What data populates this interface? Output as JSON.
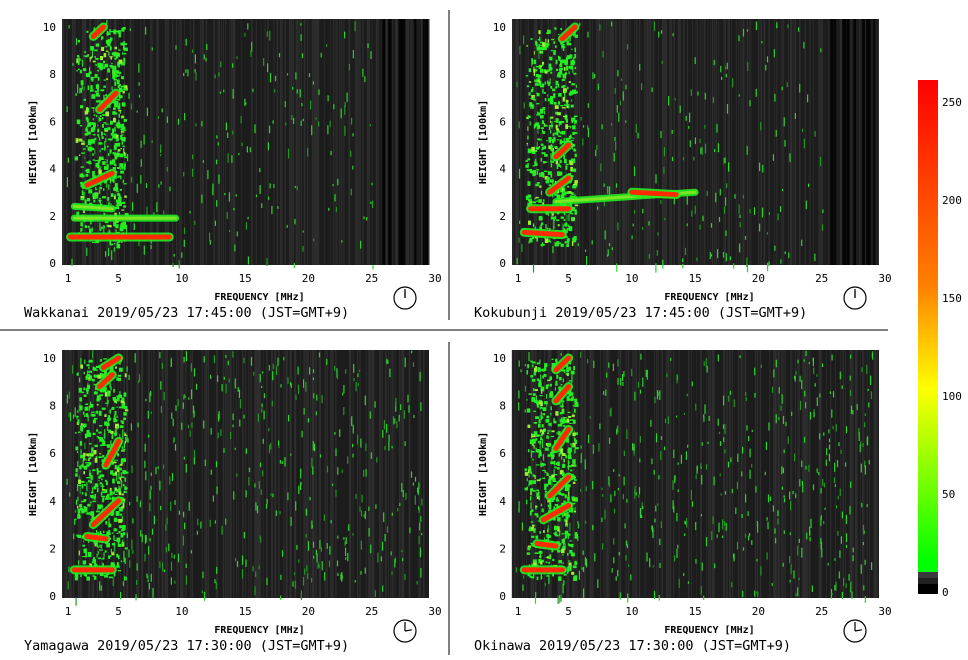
{
  "chart_data": [
    {
      "type": "heatmap",
      "station": "Wakkanai",
      "caption": "Wakkanai 2019/05/23 17:45:00 (JST=GMT+9)",
      "xlabel": "FREQUENCY [MHz]",
      "ylabel": "HEIGHT [100km]",
      "xlim": [
        0,
        30
      ],
      "ylim": [
        0,
        10
      ],
      "xticks": [
        1,
        5,
        10,
        15,
        20,
        25,
        30
      ],
      "yticks": [
        0,
        2,
        4,
        6,
        8,
        10
      ],
      "traces": [
        {
          "freq": [
            1.2,
            9.0
          ],
          "height": [
            1.1,
            1.1
          ],
          "level": 250
        },
        {
          "freq": [
            1.5,
            9.5
          ],
          "height": [
            1.9,
            1.9
          ],
          "level": 130
        },
        {
          "freq": [
            1.5,
            4.5
          ],
          "height": [
            2.4,
            2.3
          ],
          "level": 140
        },
        {
          "freq": [
            2.5,
            4.5
          ],
          "height": [
            3.3,
            3.8
          ],
          "level": 250
        },
        {
          "freq": [
            3.5,
            4.8
          ],
          "height": [
            6.5,
            7.2
          ],
          "level": 250
        },
        {
          "freq": [
            3.0,
            3.8
          ],
          "height": [
            9.6,
            10.0
          ],
          "level": 250
        }
      ]
    },
    {
      "type": "heatmap",
      "station": "Kokubunji",
      "caption": "Kokubunji 2019/05/23 17:45:00 (JST=GMT+9)",
      "xlabel": "FREQUENCY [MHz]",
      "ylabel": "HEIGHT [100km]",
      "xlim": [
        0,
        30
      ],
      "ylim": [
        0,
        10
      ],
      "xticks": [
        1,
        5,
        10,
        15,
        20,
        25,
        30
      ],
      "yticks": [
        0,
        2,
        4,
        6,
        8,
        10
      ],
      "traces": [
        {
          "freq": [
            1.5,
            4.5
          ],
          "height": [
            1.3,
            1.2
          ],
          "level": 250
        },
        {
          "freq": [
            2.0,
            5.0
          ],
          "height": [
            2.3,
            2.3
          ],
          "level": 250
        },
        {
          "freq": [
            4.0,
            15.0
          ],
          "height": [
            2.6,
            3.0
          ],
          "level": 130
        },
        {
          "freq": [
            10.0,
            13.5
          ],
          "height": [
            3.0,
            2.9
          ],
          "level": 250
        },
        {
          "freq": [
            3.5,
            5.0
          ],
          "height": [
            3.0,
            3.6
          ],
          "level": 250
        },
        {
          "freq": [
            4.0,
            5.0
          ],
          "height": [
            4.5,
            5.0
          ],
          "level": 250
        },
        {
          "freq": [
            4.5,
            5.5
          ],
          "height": [
            9.5,
            10.0
          ],
          "level": 250
        }
      ]
    },
    {
      "type": "heatmap",
      "station": "Yamagawa",
      "caption": "Yamagawa 2019/05/23 17:30:00 (JST=GMT+9)",
      "xlabel": "FREQUENCY [MHz]",
      "ylabel": "HEIGHT [100km]",
      "xlim": [
        0,
        30
      ],
      "ylim": [
        0,
        10
      ],
      "xticks": [
        1,
        5,
        10,
        15,
        20,
        25,
        30
      ],
      "yticks": [
        0,
        2,
        4,
        6,
        8,
        10
      ],
      "traces": [
        {
          "freq": [
            1.5,
            4.5
          ],
          "height": [
            1.1,
            1.1
          ],
          "level": 250
        },
        {
          "freq": [
            2.5,
            4.0
          ],
          "height": [
            2.5,
            2.4
          ],
          "level": 250
        },
        {
          "freq": [
            3.0,
            5.0
          ],
          "height": [
            3.0,
            4.0
          ],
          "level": 250
        },
        {
          "freq": [
            4.0,
            5.0
          ],
          "height": [
            5.5,
            6.5
          ],
          "level": 250
        },
        {
          "freq": [
            3.5,
            4.5
          ],
          "height": [
            8.8,
            9.3
          ],
          "level": 250
        },
        {
          "freq": [
            3.8,
            5.0
          ],
          "height": [
            9.6,
            10.0
          ],
          "level": 250
        }
      ]
    },
    {
      "type": "heatmap",
      "station": "Okinawa",
      "caption": "Okinawa 2019/05/23 17:30:00 (JST=GMT+9)",
      "xlabel": "FREQUENCY [MHz]",
      "ylabel": "HEIGHT [100km]",
      "xlim": [
        0,
        30
      ],
      "ylim": [
        0,
        10
      ],
      "xticks": [
        1,
        5,
        10,
        15,
        20,
        25,
        30
      ],
      "yticks": [
        0,
        2,
        4,
        6,
        8,
        10
      ],
      "traces": [
        {
          "freq": [
            1.5,
            4.5
          ],
          "height": [
            1.1,
            1.1
          ],
          "level": 250
        },
        {
          "freq": [
            2.5,
            4.0
          ],
          "height": [
            2.2,
            2.1
          ],
          "level": 250
        },
        {
          "freq": [
            3.0,
            5.0
          ],
          "height": [
            3.2,
            3.8
          ],
          "level": 250
        },
        {
          "freq": [
            3.5,
            5.0
          ],
          "height": [
            4.2,
            5.0
          ],
          "level": 250
        },
        {
          "freq": [
            4.0,
            5.0
          ],
          "height": [
            6.2,
            7.0
          ],
          "level": 250
        },
        {
          "freq": [
            4.0,
            5.0
          ],
          "height": [
            8.2,
            8.8
          ],
          "level": 250
        },
        {
          "freq": [
            4.0,
            5.0
          ],
          "height": [
            9.5,
            10.0
          ],
          "level": 250
        }
      ]
    }
  ],
  "colorbar": {
    "ticks": [
      0,
      50,
      100,
      150,
      200,
      250
    ],
    "range": [
      0,
      255
    ],
    "colors": [
      "#000000",
      "#00ff00",
      "#ffff00",
      "#ff8000",
      "#ff0000"
    ]
  },
  "colors": {
    "plot_background": "#1c1c1c",
    "echo_low": "#22ee22",
    "echo_high": "#ff2a00"
  },
  "icons": [
    "clock-icon"
  ]
}
